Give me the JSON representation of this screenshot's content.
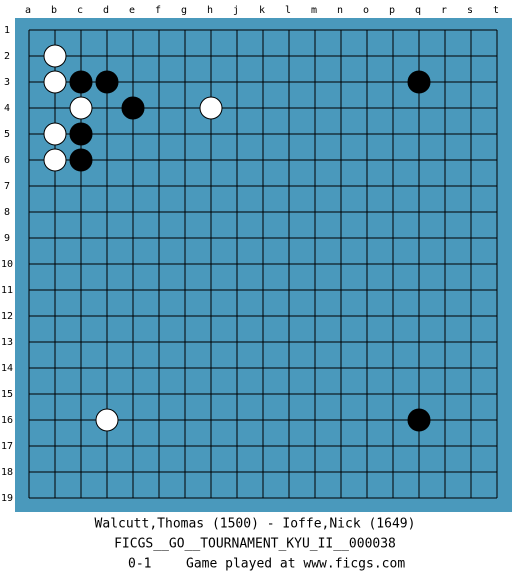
{
  "board": {
    "columns": [
      "a",
      "b",
      "c",
      "d",
      "e",
      "f",
      "g",
      "h",
      "j",
      "k",
      "l",
      "m",
      "n",
      "o",
      "p",
      "q",
      "r",
      "s",
      "t"
    ],
    "rows": [
      19,
      18,
      17,
      16,
      15,
      14,
      13,
      12,
      11,
      10,
      9,
      8,
      7,
      6,
      5,
      4,
      3,
      2,
      1
    ],
    "stones": [
      {
        "color": "white",
        "col": "d",
        "row": 16
      },
      {
        "color": "black",
        "col": "q",
        "row": 16
      },
      {
        "color": "white",
        "col": "b",
        "row": 6
      },
      {
        "color": "black",
        "col": "c",
        "row": 6
      },
      {
        "color": "white",
        "col": "b",
        "row": 5
      },
      {
        "color": "black",
        "col": "c",
        "row": 5
      },
      {
        "color": "white",
        "col": "c",
        "row": 4
      },
      {
        "color": "black",
        "col": "e",
        "row": 4
      },
      {
        "color": "white",
        "col": "h",
        "row": 4
      },
      {
        "color": "white",
        "col": "b",
        "row": 3
      },
      {
        "color": "black",
        "col": "c",
        "row": 3
      },
      {
        "color": "black",
        "col": "d",
        "row": 3
      },
      {
        "color": "black",
        "col": "q",
        "row": 3
      },
      {
        "color": "white",
        "col": "b",
        "row": 2
      }
    ]
  },
  "footer": {
    "players": "Walcutt,Thomas (1500) - Ioffe,Nick (1649)",
    "event": "FICGS__GO__TOURNAMENT_KYU_II__000038",
    "result": "0-1",
    "note": "Game played at www.ficgs.com"
  }
}
